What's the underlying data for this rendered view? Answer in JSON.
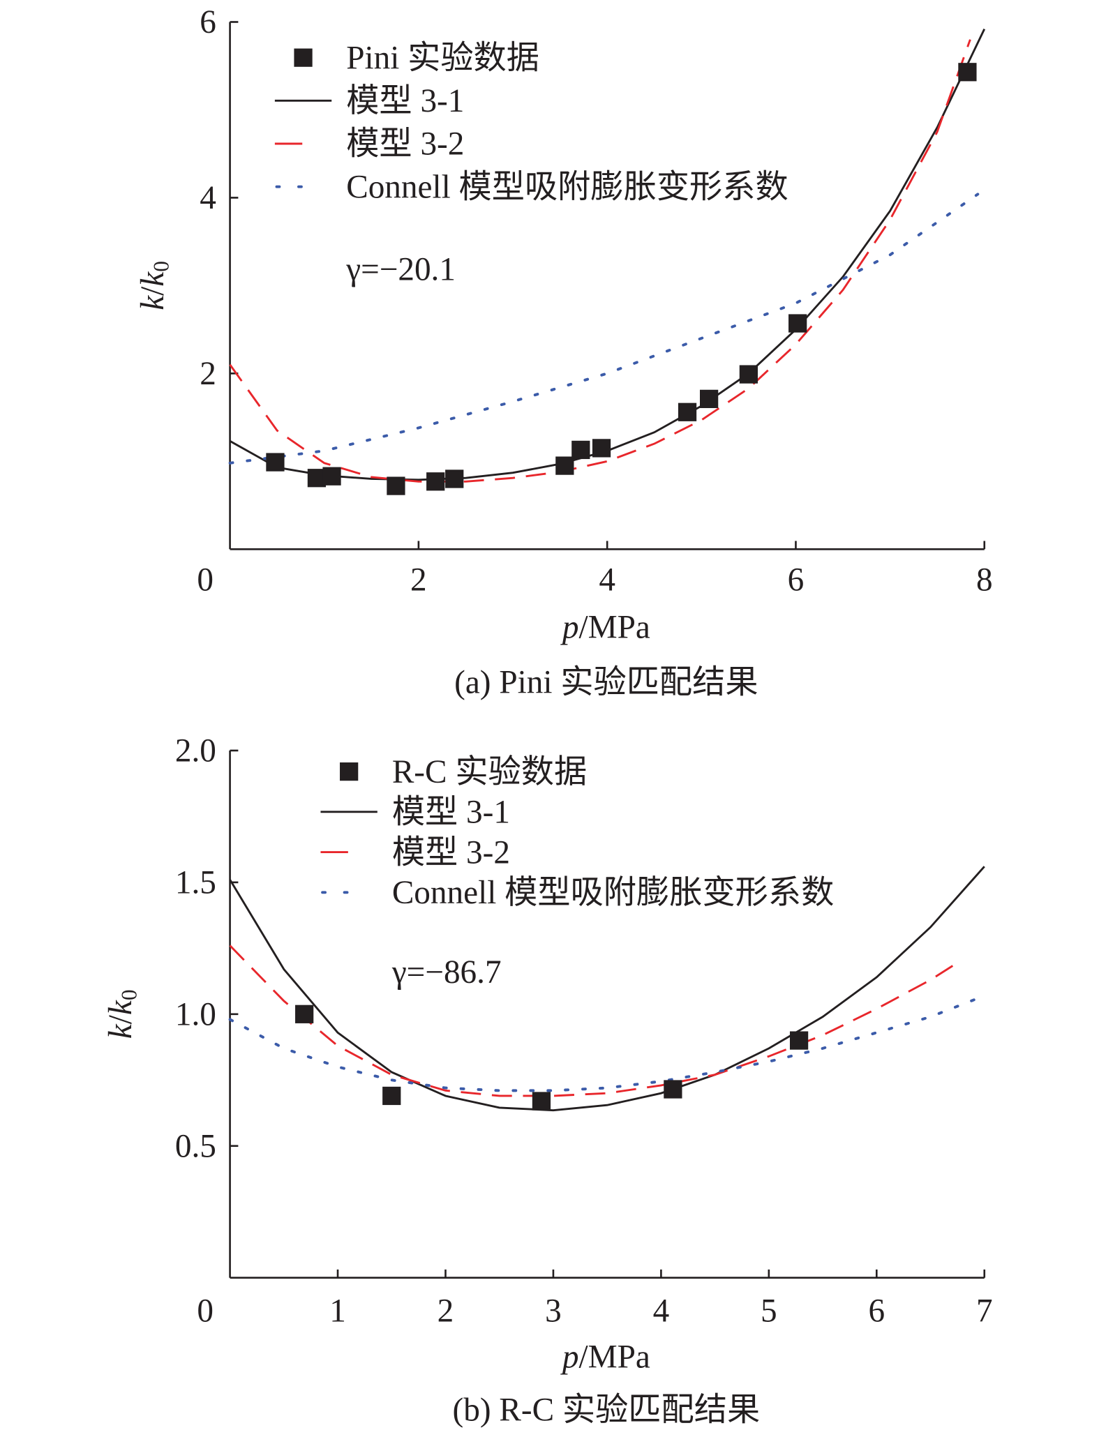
{
  "chart_data": [
    {
      "type": "line",
      "caption": "(a) Pini 实验匹配结果",
      "xlabel_italic": "p",
      "xlabel_unit": "/MPa",
      "ylabel_num": "k",
      "ylabel_den": "k",
      "ylabel_sub": "0",
      "xlim": [
        0,
        8
      ],
      "ylim": [
        0,
        6
      ],
      "xticks": [
        "0",
        "2",
        "4",
        "6",
        "8"
      ],
      "yticks": [
        "2",
        "4",
        "6"
      ],
      "grid": false,
      "legend_position": "top-left",
      "gamma_label": "γ=−20.1",
      "scatter": {
        "name": "Pini 实验数据",
        "color": "#231f20",
        "x": [
          0.48,
          0.92,
          1.08,
          1.76,
          2.18,
          2.38,
          3.55,
          3.72,
          3.94,
          4.85,
          5.08,
          5.5,
          6.02,
          7.82
        ],
        "y": [
          0.99,
          0.81,
          0.83,
          0.72,
          0.77,
          0.8,
          0.95,
          1.13,
          1.15,
          1.56,
          1.71,
          1.99,
          2.57,
          5.43
        ]
      },
      "series": [
        {
          "name": "模型 3-1",
          "color": "#231f20",
          "style": "solid",
          "x": [
            0,
            0.5,
            1,
            1.5,
            2,
            2.5,
            3,
            3.5,
            4,
            4.5,
            5,
            5.5,
            6,
            6.5,
            7,
            7.5,
            8
          ],
          "y": [
            1.23,
            0.93,
            0.84,
            0.8,
            0.79,
            0.81,
            0.87,
            0.97,
            1.12,
            1.33,
            1.63,
            2.0,
            2.5,
            3.1,
            3.85,
            4.8,
            5.92
          ]
        },
        {
          "name": "模型 3-2",
          "color": "#e8262b",
          "style": "dashed",
          "x": [
            0,
            0.5,
            1,
            1.5,
            2,
            2.5,
            3,
            3.5,
            4,
            4.5,
            5,
            5.5,
            6,
            6.5,
            7,
            7.5,
            7.85
          ],
          "y": [
            2.1,
            1.35,
            0.98,
            0.82,
            0.77,
            0.77,
            0.81,
            0.88,
            1.0,
            1.2,
            1.47,
            1.83,
            2.33,
            2.95,
            3.75,
            4.75,
            5.8
          ]
        },
        {
          "name": "Connell 模型吸附膨胀变形系数",
          "color": "#3b5ba9",
          "style": "dotted",
          "x": [
            0,
            1,
            2,
            3,
            4,
            5,
            6,
            7,
            7.93
          ],
          "y": [
            0.98,
            1.12,
            1.38,
            1.68,
            2.0,
            2.4,
            2.8,
            3.35,
            4.04
          ]
        }
      ]
    },
    {
      "type": "line",
      "caption": "(b) R-C 实验匹配结果",
      "xlabel_italic": "p",
      "xlabel_unit": "/MPa",
      "ylabel_num": "k",
      "ylabel_den": "k",
      "ylabel_sub": "0",
      "xlim": [
        0,
        7
      ],
      "ylim": [
        0,
        2.0
      ],
      "xticks": [
        "0",
        "1",
        "2",
        "3",
        "4",
        "5",
        "6",
        "7"
      ],
      "yticks": [
        "0.5",
        "1.0",
        "1.5",
        "2.0"
      ],
      "grid": false,
      "legend_position": "top-left",
      "gamma_label": "γ=−86.7",
      "scatter": {
        "name": "R-C 实验数据",
        "color": "#231f20",
        "x": [
          0.69,
          1.5,
          2.89,
          4.11,
          5.28
        ],
        "y": [
          1.0,
          0.69,
          0.67,
          0.715,
          0.9
        ]
      },
      "series": [
        {
          "name": "模型 3-1",
          "color": "#231f20",
          "style": "solid",
          "x": [
            0,
            0.5,
            1,
            1.5,
            2,
            2.5,
            3,
            3.5,
            4,
            4.5,
            5,
            5.5,
            6,
            6.5,
            7
          ],
          "y": [
            1.51,
            1.17,
            0.93,
            0.78,
            0.69,
            0.645,
            0.635,
            0.655,
            0.7,
            0.77,
            0.87,
            0.99,
            1.14,
            1.33,
            1.56
          ]
        },
        {
          "name": "模型 3-2",
          "color": "#e8262b",
          "style": "dashed",
          "x": [
            0,
            0.5,
            1,
            1.5,
            2,
            2.5,
            3,
            3.5,
            4,
            4.5,
            5,
            5.5,
            6,
            6.5,
            6.77
          ],
          "y": [
            1.26,
            1.05,
            0.88,
            0.77,
            0.71,
            0.69,
            0.69,
            0.7,
            0.73,
            0.77,
            0.84,
            0.92,
            1.02,
            1.13,
            1.2
          ]
        },
        {
          "name": "Connell 模型吸附膨胀变形系数",
          "color": "#3b5ba9",
          "style": "dotted",
          "x": [
            0,
            0.5,
            1,
            1.5,
            2,
            2.5,
            3,
            3.5,
            4,
            4.5,
            5,
            5.5,
            6,
            6.5,
            6.94
          ],
          "y": [
            0.98,
            0.87,
            0.8,
            0.75,
            0.72,
            0.71,
            0.71,
            0.72,
            0.745,
            0.78,
            0.82,
            0.87,
            0.93,
            0.99,
            1.06
          ]
        }
      ]
    }
  ]
}
